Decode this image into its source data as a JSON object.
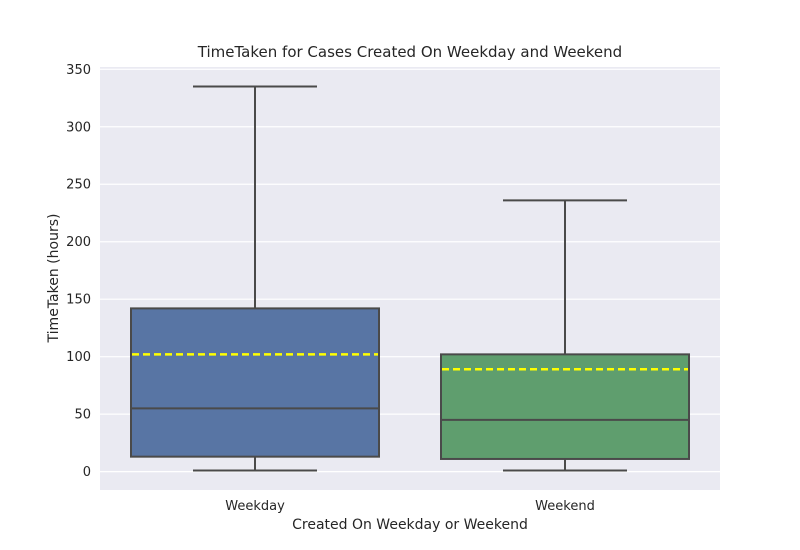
{
  "chart_data": {
    "type": "box",
    "title": "TimeTaken for Cases Created On Weekday and Weekend",
    "xlabel": "Created On Weekday or Weekend",
    "ylabel": "TimeTaken (hours)",
    "ylim": [
      -16,
      352
    ],
    "yticks": [
      0,
      50,
      100,
      150,
      200,
      250,
      300,
      350
    ],
    "grid": true,
    "categories": [
      "Weekday",
      "Weekend"
    ],
    "series": [
      {
        "category": "Weekday",
        "color": "#5875a4",
        "whisker_low": 1,
        "q1": 13,
        "median": 55,
        "q3": 142,
        "whisker_high": 335,
        "mean": 102
      },
      {
        "category": "Weekend",
        "color": "#5f9e6e",
        "whisker_low": 1,
        "q1": 11,
        "median": 45,
        "q3": 102,
        "whisker_high": 236,
        "mean": 89
      }
    ],
    "colors": {
      "plot_background": "#eaeaf2",
      "grid": "#ffffff",
      "box_edge": "#4a4a4a",
      "mean_line": "#ffff00"
    }
  }
}
